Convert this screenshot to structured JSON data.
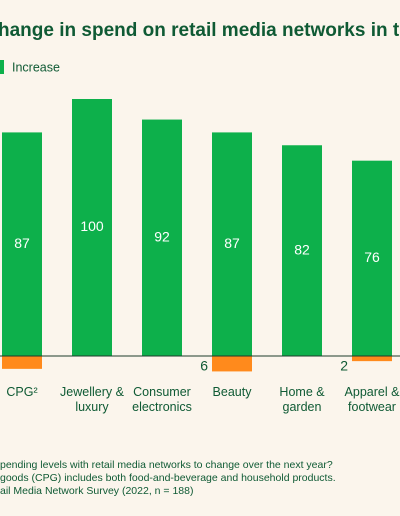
{
  "chart_data": {
    "type": "bar",
    "title": "hange in spend on retail media networks in the",
    "categories": [
      "CPG²",
      "Jewellery & luxury",
      "Consumer electronics",
      "Beauty",
      "Home & garden",
      "Apparel & footwear"
    ],
    "series": [
      {
        "name": "Increase",
        "color": "#0db04b",
        "values": [
          87,
          100,
          92,
          87,
          82,
          76
        ]
      },
      {
        "color": "#ff8a1c",
        "values": [
          5,
          null,
          null,
          6,
          null,
          2
        ]
      }
    ],
    "ylim": [
      -20,
      100
    ],
    "footnotes": [
      "pending levels with retail media networks to change over the next year?",
      "goods (CPG) includes both food-and-beverage and household products.",
      "ail Media Network Survey (2022, n = 188)"
    ]
  }
}
